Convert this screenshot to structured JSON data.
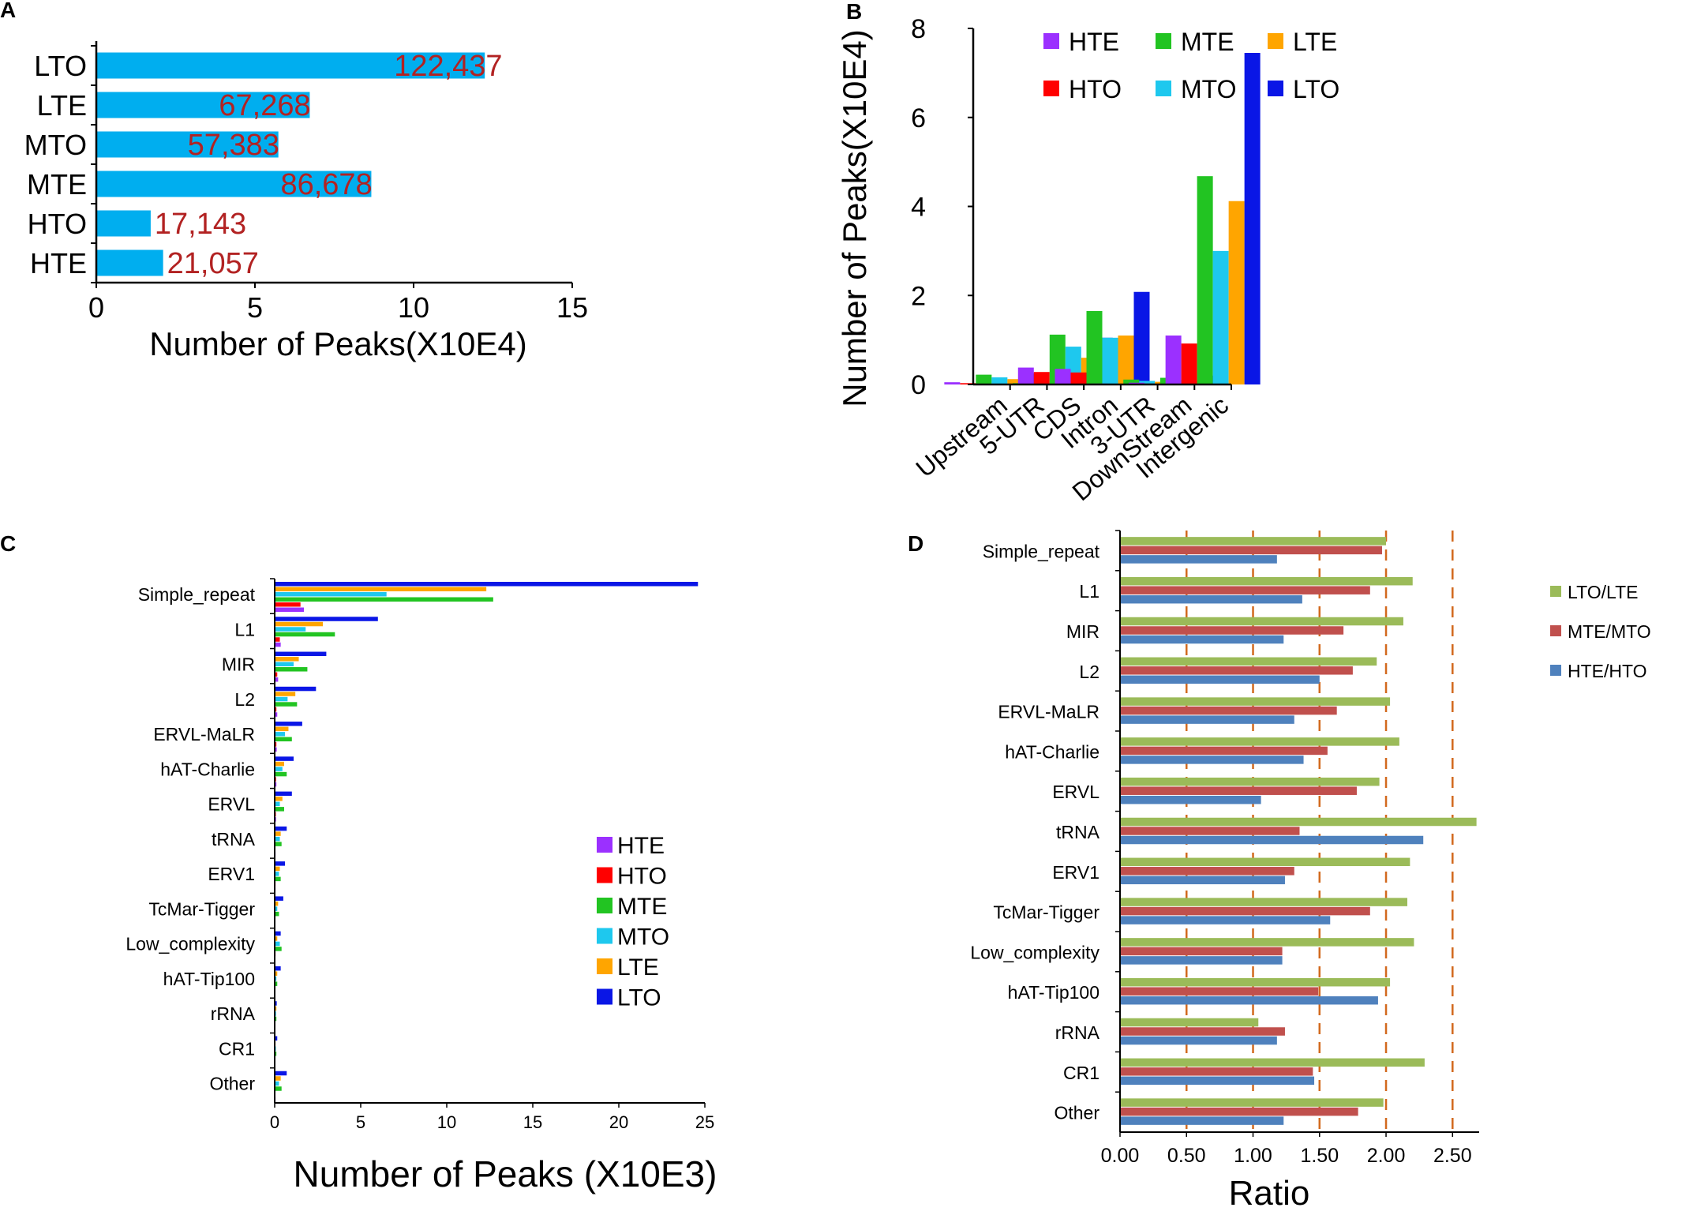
{
  "chart_data": [
    {
      "panel": "A",
      "type": "bar",
      "orientation": "horizontal",
      "categories": [
        "LTO",
        "LTE",
        "MTO",
        "MTE",
        "HTO",
        "HTE"
      ],
      "values": [
        12.2437,
        6.7268,
        5.7383,
        8.6678,
        1.7143,
        2.1057
      ],
      "data_labels": [
        "122,437",
        "67,268",
        "57,383",
        "86,678",
        "17,143",
        "21,057"
      ],
      "xlabel": "Number of Peaks(X10E4)",
      "xlim": [
        0,
        15
      ],
      "xticks": [
        "0",
        "5",
        "10",
        "15"
      ],
      "colors": {
        "bar": "#00aeef",
        "label": "#b22222"
      }
    },
    {
      "panel": "B",
      "type": "bar",
      "orientation": "vertical",
      "categories": [
        "Upstream",
        "5-UTR",
        "CDS",
        "Intron",
        "3-UTR",
        "DownStream",
        "Intergenic"
      ],
      "series": [
        {
          "name": "HTE",
          "color": "#9b30ff",
          "values": [
            0.05,
            0.01,
            0.38,
            0.35,
            0.02,
            0.04,
            1.1
          ]
        },
        {
          "name": "HTO",
          "color": "#ff0000",
          "values": [
            0.03,
            0.01,
            0.28,
            0.27,
            0.01,
            0.02,
            0.92
          ]
        },
        {
          "name": "MTE",
          "color": "#22c422",
          "values": [
            0.22,
            0.03,
            1.12,
            1.65,
            0.11,
            0.15,
            4.68
          ]
        },
        {
          "name": "MTO",
          "color": "#1ec8ee",
          "values": [
            0.16,
            0.03,
            0.85,
            1.05,
            0.08,
            0.1,
            3.0
          ]
        },
        {
          "name": "LTE",
          "color": "#ffa500",
          "values": [
            0.12,
            0.02,
            0.6,
            1.1,
            0.06,
            0.09,
            4.12
          ]
        },
        {
          "name": "LTO",
          "color": "#0a16e6",
          "values": [
            0.25,
            0.05,
            1.05,
            2.08,
            0.1,
            0.2,
            7.45
          ]
        }
      ],
      "ylabel": "Number of Peaks(X10E4)",
      "ylim": [
        0,
        8
      ],
      "yticks": [
        "0",
        "2",
        "4",
        "6",
        "8"
      ],
      "legend": "top"
    },
    {
      "panel": "C",
      "type": "bar",
      "orientation": "horizontal",
      "categories": [
        "Simple_repeat",
        "L1",
        "MIR",
        "L2",
        "ERVL-MaLR",
        "hAT-Charlie",
        "ERVL",
        "tRNA",
        "ERV1",
        "TcMar-Tigger",
        "Low_complexity",
        "hAT-Tip100",
        "rRNA",
        "CR1",
        "Other"
      ],
      "series": [
        {
          "name": "HTE",
          "color": "#9b30ff",
          "values": [
            1.7,
            0.35,
            0.2,
            0.15,
            0.12,
            0.1,
            0.08,
            0.05,
            0.05,
            0.03,
            0.04,
            0.02,
            0.02,
            0.02,
            0.05
          ]
        },
        {
          "name": "HTO",
          "color": "#ff0000",
          "values": [
            1.5,
            0.3,
            0.15,
            0.1,
            0.1,
            0.08,
            0.07,
            0.03,
            0.05,
            0.02,
            0.05,
            0.02,
            0.02,
            0.01,
            0.04
          ]
        },
        {
          "name": "MTE",
          "color": "#22c422",
          "values": [
            12.7,
            3.5,
            1.9,
            1.3,
            1.0,
            0.7,
            0.55,
            0.4,
            0.35,
            0.25,
            0.4,
            0.15,
            0.1,
            0.1,
            0.4
          ]
        },
        {
          "name": "MTO",
          "color": "#1ec8ee",
          "values": [
            6.5,
            1.8,
            1.1,
            0.75,
            0.6,
            0.45,
            0.3,
            0.3,
            0.25,
            0.15,
            0.3,
            0.1,
            0.08,
            0.07,
            0.25
          ]
        },
        {
          "name": "LTE",
          "color": "#ffa500",
          "values": [
            12.3,
            2.8,
            1.4,
            1.2,
            0.8,
            0.55,
            0.45,
            0.35,
            0.3,
            0.2,
            0.15,
            0.15,
            0.1,
            0.05,
            0.35
          ]
        },
        {
          "name": "LTO",
          "color": "#0a16e6",
          "values": [
            24.6,
            6.0,
            3.0,
            2.4,
            1.6,
            1.1,
            1.0,
            0.7,
            0.6,
            0.5,
            0.35,
            0.35,
            0.12,
            0.15,
            0.7
          ]
        }
      ],
      "xlabel": "Number of Peaks (X10E3)",
      "xlim": [
        0,
        25
      ],
      "xticks": [
        "0",
        "5",
        "10",
        "15",
        "20",
        "25"
      ],
      "legend": "right"
    },
    {
      "panel": "D",
      "type": "bar",
      "orientation": "horizontal",
      "categories": [
        "Simple_repeat",
        "L1",
        "MIR",
        "L2",
        "ERVL-MaLR",
        "hAT-Charlie",
        "ERVL",
        "tRNA",
        "ERV1",
        "TcMar-Tigger",
        "Low_complexity",
        "hAT-Tip100",
        "rRNA",
        "CR1",
        "Other"
      ],
      "series": [
        {
          "name": "LTO/LTE",
          "color": "#9bbb59",
          "values": [
            2.0,
            2.2,
            2.13,
            1.93,
            2.03,
            2.1,
            1.95,
            2.68,
            2.18,
            2.16,
            2.21,
            2.03,
            1.04,
            2.29,
            1.98
          ]
        },
        {
          "name": "MTE/MTO",
          "color": "#c0504d",
          "values": [
            1.97,
            1.88,
            1.68,
            1.75,
            1.63,
            1.56,
            1.78,
            1.35,
            1.31,
            1.88,
            1.22,
            1.49,
            1.24,
            1.45,
            1.79
          ]
        },
        {
          "name": "HTE/HTO",
          "color": "#4f81bd",
          "values": [
            1.18,
            1.37,
            1.23,
            1.5,
            1.31,
            1.38,
            1.06,
            2.28,
            1.24,
            1.58,
            1.22,
            1.94,
            1.18,
            1.46,
            1.23
          ]
        }
      ],
      "xlabel": "Ratio",
      "xlim": [
        0,
        2.7
      ],
      "xticks": [
        "0.00",
        "0.50",
        "1.00",
        "1.50",
        "2.00",
        "2.50"
      ],
      "reference_lines": [
        0.5,
        1.0,
        1.5,
        2.0,
        2.5
      ],
      "legend": "right"
    }
  ],
  "panels": {
    "A": {
      "letter": "A"
    },
    "B": {
      "letter": "B"
    },
    "C": {
      "letter": "C"
    },
    "D": {
      "letter": "D"
    }
  }
}
